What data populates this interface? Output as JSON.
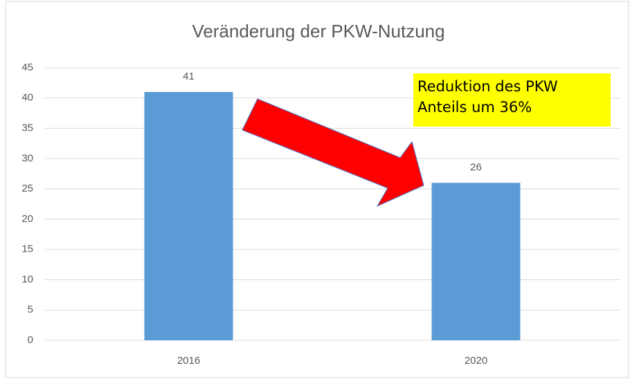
{
  "chart_data": {
    "type": "bar",
    "title": "Veränderung der PKW-Nutzung",
    "categories": [
      "2016",
      "2020"
    ],
    "values": [
      41,
      26
    ],
    "color": "#5b9bd5",
    "ylim": [
      0,
      45
    ],
    "yticks": [
      0,
      5,
      10,
      15,
      20,
      25,
      30,
      35,
      40,
      45
    ],
    "grid": true,
    "annotation": "Reduktion des PKW Anteils um 36%"
  }
}
